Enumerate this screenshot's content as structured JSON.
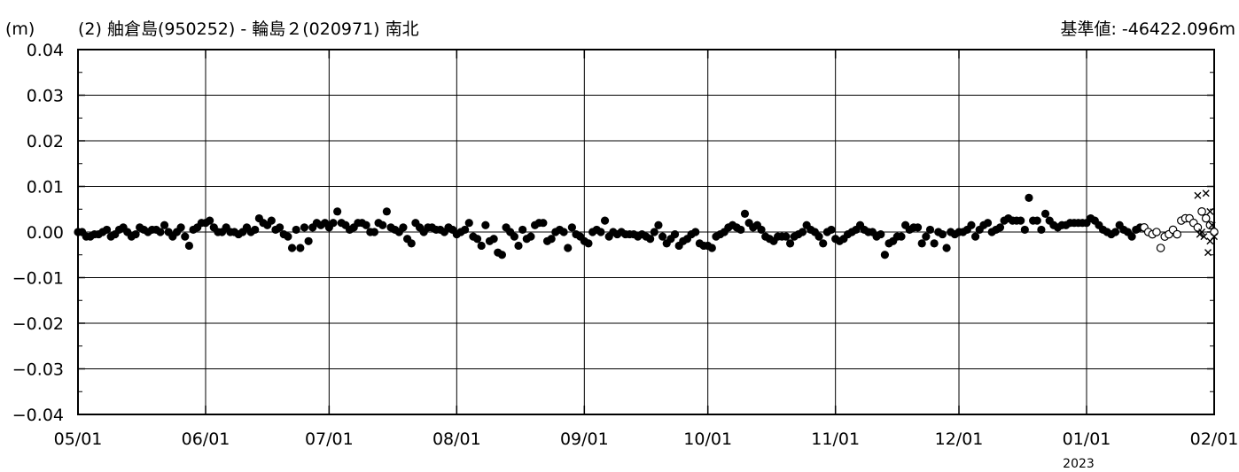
{
  "chart_data": {
    "type": "scatter",
    "unit_label": "(m)",
    "title": "(2) 舳倉島(950252) - 輪島２(020971) 南北",
    "baseline_label": "基準値: -46422.096m",
    "year_label": "2023",
    "ylim": [
      -0.04,
      0.04
    ],
    "y_ticks": [
      "0.04",
      "0.03",
      "0.02",
      "0.01",
      "0.00",
      "−0.01",
      "−0.02",
      "−0.03",
      "−0.04"
    ],
    "y_tick_values": [
      0.04,
      0.03,
      0.02,
      0.01,
      0.0,
      -0.01,
      -0.02,
      -0.03,
      -0.04
    ],
    "xlim": [
      0,
      276
    ],
    "x_ticks": [
      "05/01",
      "06/01",
      "07/01",
      "08/01",
      "09/01",
      "10/01",
      "11/01",
      "12/01",
      "01/01",
      "02/01"
    ],
    "x_tick_days": [
      0,
      31,
      61,
      92,
      123,
      153,
      184,
      214,
      245,
      276
    ],
    "grid": true,
    "series": [
      {
        "marker": "filled-circle",
        "points": [
          [
            0,
            0.0
          ],
          [
            1,
            0.0
          ],
          [
            2,
            -0.001
          ],
          [
            3,
            -0.001
          ],
          [
            4,
            -0.0005
          ],
          [
            5,
            -0.0005
          ],
          [
            6,
            0.0
          ],
          [
            7,
            0.0005
          ],
          [
            8,
            -0.001
          ],
          [
            9,
            -0.0005
          ],
          [
            10,
            0.0005
          ],
          [
            11,
            0.001
          ],
          [
            12,
            0.0
          ],
          [
            13,
            -0.001
          ],
          [
            14,
            -0.0005
          ],
          [
            15,
            0.001
          ],
          [
            16,
            0.0005
          ],
          [
            17,
            0.0
          ],
          [
            18,
            0.0005
          ],
          [
            19,
            0.0005
          ],
          [
            20,
            0.0
          ],
          [
            21,
            0.0015
          ],
          [
            22,
            0.0
          ],
          [
            23,
            -0.001
          ],
          [
            24,
            0.0
          ],
          [
            25,
            0.001
          ],
          [
            26,
            -0.001
          ],
          [
            27,
            -0.003
          ],
          [
            28,
            0.0005
          ],
          [
            29,
            0.001
          ],
          [
            30,
            0.002
          ],
          [
            31,
            0.002
          ],
          [
            32,
            0.0025
          ],
          [
            33,
            0.001
          ],
          [
            34,
            0.0
          ],
          [
            35,
            0.0
          ],
          [
            36,
            0.001
          ],
          [
            37,
            0.0
          ],
          [
            38,
            0.0
          ],
          [
            39,
            -0.0005
          ],
          [
            40,
            0.0
          ],
          [
            41,
            0.001
          ],
          [
            42,
            0.0
          ],
          [
            43,
            0.0005
          ],
          [
            44,
            0.003
          ],
          [
            45,
            0.002
          ],
          [
            46,
            0.0015
          ],
          [
            47,
            0.0025
          ],
          [
            48,
            0.0005
          ],
          [
            49,
            0.001
          ],
          [
            50,
            -0.0005
          ],
          [
            51,
            -0.001
          ],
          [
            52,
            -0.0035
          ],
          [
            53,
            0.0005
          ],
          [
            54,
            -0.0035
          ],
          [
            55,
            0.001
          ],
          [
            56,
            -0.002
          ],
          [
            57,
            0.001
          ],
          [
            58,
            0.002
          ],
          [
            59,
            0.0015
          ],
          [
            60,
            0.002
          ],
          [
            61,
            0.001
          ],
          [
            62,
            0.002
          ],
          [
            63,
            0.0045
          ],
          [
            64,
            0.002
          ],
          [
            65,
            0.0015
          ],
          [
            66,
            0.0005
          ],
          [
            67,
            0.001
          ],
          [
            68,
            0.002
          ],
          [
            69,
            0.002
          ],
          [
            70,
            0.0015
          ],
          [
            71,
            0.0
          ],
          [
            72,
            0.0
          ],
          [
            73,
            0.002
          ],
          [
            74,
            0.0015
          ],
          [
            75,
            0.0045
          ],
          [
            76,
            0.001
          ],
          [
            77,
            0.0005
          ],
          [
            78,
            0.0
          ],
          [
            79,
            0.001
          ],
          [
            80,
            -0.0015
          ],
          [
            81,
            -0.0025
          ],
          [
            82,
            0.002
          ],
          [
            83,
            0.001
          ],
          [
            84,
            0.0
          ],
          [
            85,
            0.001
          ],
          [
            86,
            0.001
          ],
          [
            87,
            0.0005
          ],
          [
            88,
            0.0005
          ],
          [
            89,
            0.0
          ],
          [
            90,
            0.001
          ],
          [
            91,
            0.0005
          ],
          [
            92,
            -0.0005
          ],
          [
            93,
            0.0
          ],
          [
            94,
            0.0005
          ],
          [
            95,
            0.002
          ],
          [
            96,
            -0.001
          ],
          [
            97,
            -0.0015
          ],
          [
            98,
            -0.003
          ],
          [
            99,
            0.0015
          ],
          [
            100,
            -0.002
          ],
          [
            101,
            -0.0015
          ],
          [
            102,
            -0.0045
          ],
          [
            103,
            -0.005
          ],
          [
            104,
            0.001
          ],
          [
            105,
            0.0
          ],
          [
            106,
            -0.001
          ],
          [
            107,
            -0.003
          ],
          [
            108,
            0.0005
          ],
          [
            109,
            -0.0015
          ],
          [
            110,
            -0.001
          ],
          [
            111,
            0.0015
          ],
          [
            112,
            0.002
          ],
          [
            113,
            0.002
          ],
          [
            114,
            -0.002
          ],
          [
            115,
            -0.0015
          ],
          [
            116,
            0.0
          ],
          [
            117,
            0.0005
          ],
          [
            118,
            0.0
          ],
          [
            119,
            -0.0035
          ],
          [
            120,
            0.001
          ],
          [
            121,
            -0.0005
          ],
          [
            122,
            -0.001
          ],
          [
            123,
            -0.002
          ],
          [
            124,
            -0.0025
          ],
          [
            125,
            0.0
          ],
          [
            126,
            0.0005
          ],
          [
            127,
            0.0
          ],
          [
            128,
            0.0025
          ],
          [
            129,
            -0.001
          ],
          [
            130,
            0.0
          ],
          [
            131,
            -0.0005
          ],
          [
            132,
            0.0
          ],
          [
            133,
            -0.0005
          ],
          [
            134,
            -0.0005
          ],
          [
            135,
            -0.0005
          ],
          [
            136,
            -0.001
          ],
          [
            137,
            -0.0005
          ],
          [
            138,
            -0.001
          ],
          [
            139,
            -0.0015
          ],
          [
            140,
            0.0
          ],
          [
            141,
            0.0015
          ],
          [
            142,
            -0.001
          ],
          [
            143,
            -0.0025
          ],
          [
            144,
            -0.0015
          ],
          [
            145,
            -0.0005
          ],
          [
            146,
            -0.003
          ],
          [
            147,
            -0.002
          ],
          [
            148,
            -0.0015
          ],
          [
            149,
            -0.0005
          ],
          [
            150,
            0.0
          ],
          [
            151,
            -0.0025
          ],
          [
            152,
            -0.003
          ],
          [
            153,
            -0.003
          ],
          [
            154,
            -0.0035
          ],
          [
            155,
            -0.001
          ],
          [
            156,
            -0.0005
          ],
          [
            157,
            0.0
          ],
          [
            158,
            0.001
          ],
          [
            159,
            0.0015
          ],
          [
            160,
            0.001
          ],
          [
            161,
            0.0005
          ],
          [
            162,
            0.004
          ],
          [
            163,
            0.002
          ],
          [
            164,
            0.001
          ],
          [
            165,
            0.0015
          ],
          [
            166,
            0.0005
          ],
          [
            167,
            -0.001
          ],
          [
            168,
            -0.0015
          ],
          [
            169,
            -0.002
          ],
          [
            170,
            -0.001
          ],
          [
            171,
            -0.001
          ],
          [
            172,
            -0.001
          ],
          [
            173,
            -0.0025
          ],
          [
            174,
            -0.001
          ],
          [
            175,
            -0.0005
          ],
          [
            176,
            0.0
          ],
          [
            177,
            0.0015
          ],
          [
            178,
            0.0005
          ],
          [
            179,
            0.0
          ],
          [
            180,
            -0.001
          ],
          [
            181,
            -0.0025
          ],
          [
            182,
            0.0
          ],
          [
            183,
            0.0005
          ],
          [
            184,
            -0.0015
          ],
          [
            185,
            -0.002
          ],
          [
            186,
            -0.0015
          ],
          [
            187,
            -0.0005
          ],
          [
            188,
            0.0
          ],
          [
            189,
            0.0005
          ],
          [
            190,
            0.0015
          ],
          [
            191,
            0.0005
          ],
          [
            192,
            0.0
          ],
          [
            193,
            0.0
          ],
          [
            194,
            -0.001
          ],
          [
            195,
            -0.0005
          ],
          [
            196,
            -0.005
          ],
          [
            197,
            -0.0025
          ],
          [
            198,
            -0.002
          ],
          [
            199,
            -0.001
          ],
          [
            200,
            -0.001
          ],
          [
            201,
            0.0015
          ],
          [
            202,
            0.0005
          ],
          [
            203,
            0.001
          ],
          [
            204,
            0.001
          ],
          [
            205,
            -0.0025
          ],
          [
            206,
            -0.001
          ],
          [
            207,
            0.0005
          ],
          [
            208,
            -0.0025
          ],
          [
            209,
            0.0
          ],
          [
            210,
            -0.0005
          ],
          [
            211,
            -0.0035
          ],
          [
            212,
            0.0
          ],
          [
            213,
            -0.0005
          ],
          [
            214,
            0.0
          ],
          [
            215,
            0.0
          ],
          [
            216,
            0.0005
          ],
          [
            217,
            0.0015
          ],
          [
            218,
            -0.001
          ],
          [
            219,
            0.0005
          ],
          [
            220,
            0.0015
          ],
          [
            221,
            0.002
          ],
          [
            222,
            0.0
          ],
          [
            223,
            0.0005
          ],
          [
            224,
            0.001
          ],
          [
            225,
            0.0025
          ],
          [
            226,
            0.003
          ],
          [
            227,
            0.0025
          ],
          [
            228,
            0.0025
          ],
          [
            229,
            0.0025
          ],
          [
            230,
            0.0005
          ],
          [
            231,
            0.0075
          ],
          [
            232,
            0.0025
          ],
          [
            233,
            0.0025
          ],
          [
            234,
            0.0005
          ],
          [
            235,
            0.004
          ],
          [
            236,
            0.0025
          ],
          [
            237,
            0.0015
          ],
          [
            238,
            0.001
          ],
          [
            239,
            0.0015
          ],
          [
            240,
            0.0015
          ],
          [
            241,
            0.002
          ],
          [
            242,
            0.002
          ],
          [
            243,
            0.002
          ],
          [
            244,
            0.002
          ],
          [
            245,
            0.002
          ],
          [
            246,
            0.003
          ],
          [
            247,
            0.0025
          ],
          [
            248,
            0.0015
          ],
          [
            249,
            0.0005
          ],
          [
            250,
            0.0
          ],
          [
            251,
            -0.0005
          ],
          [
            252,
            0.0
          ],
          [
            253,
            0.0015
          ],
          [
            254,
            0.0005
          ],
          [
            255,
            0.0
          ],
          [
            256,
            -0.001
          ],
          [
            257,
            0.0005
          ],
          [
            258,
            0.001
          ]
        ]
      },
      {
        "marker": "open-circle",
        "points": [
          [
            259,
            0.001
          ],
          [
            260,
            0.0
          ],
          [
            261,
            -0.0005
          ],
          [
            262,
            0.0
          ],
          [
            263,
            -0.0035
          ],
          [
            264,
            -0.001
          ],
          [
            265,
            -0.0005
          ],
          [
            266,
            0.0005
          ],
          [
            267,
            -0.0005
          ],
          [
            268,
            0.0025
          ],
          [
            269,
            0.003
          ],
          [
            270,
            0.003
          ],
          [
            271,
            0.002
          ],
          [
            272,
            0.001
          ],
          [
            273,
            0.0045
          ],
          [
            274,
            0.003
          ],
          [
            275,
            0.0015
          ],
          [
            276,
            0.0
          ]
        ]
      },
      {
        "marker": "cross",
        "points": [
          [
            272,
            0.008
          ],
          [
            273,
            0.0
          ],
          [
            273.5,
            -0.001
          ],
          [
            274,
            0.0085
          ],
          [
            274.5,
            -0.0045
          ],
          [
            275,
            -0.002
          ],
          [
            275.5,
            0.0015
          ],
          [
            276,
            -0.001
          ],
          [
            272.5,
            -0.0005
          ],
          [
            275,
            0.0045
          ]
        ]
      }
    ]
  }
}
